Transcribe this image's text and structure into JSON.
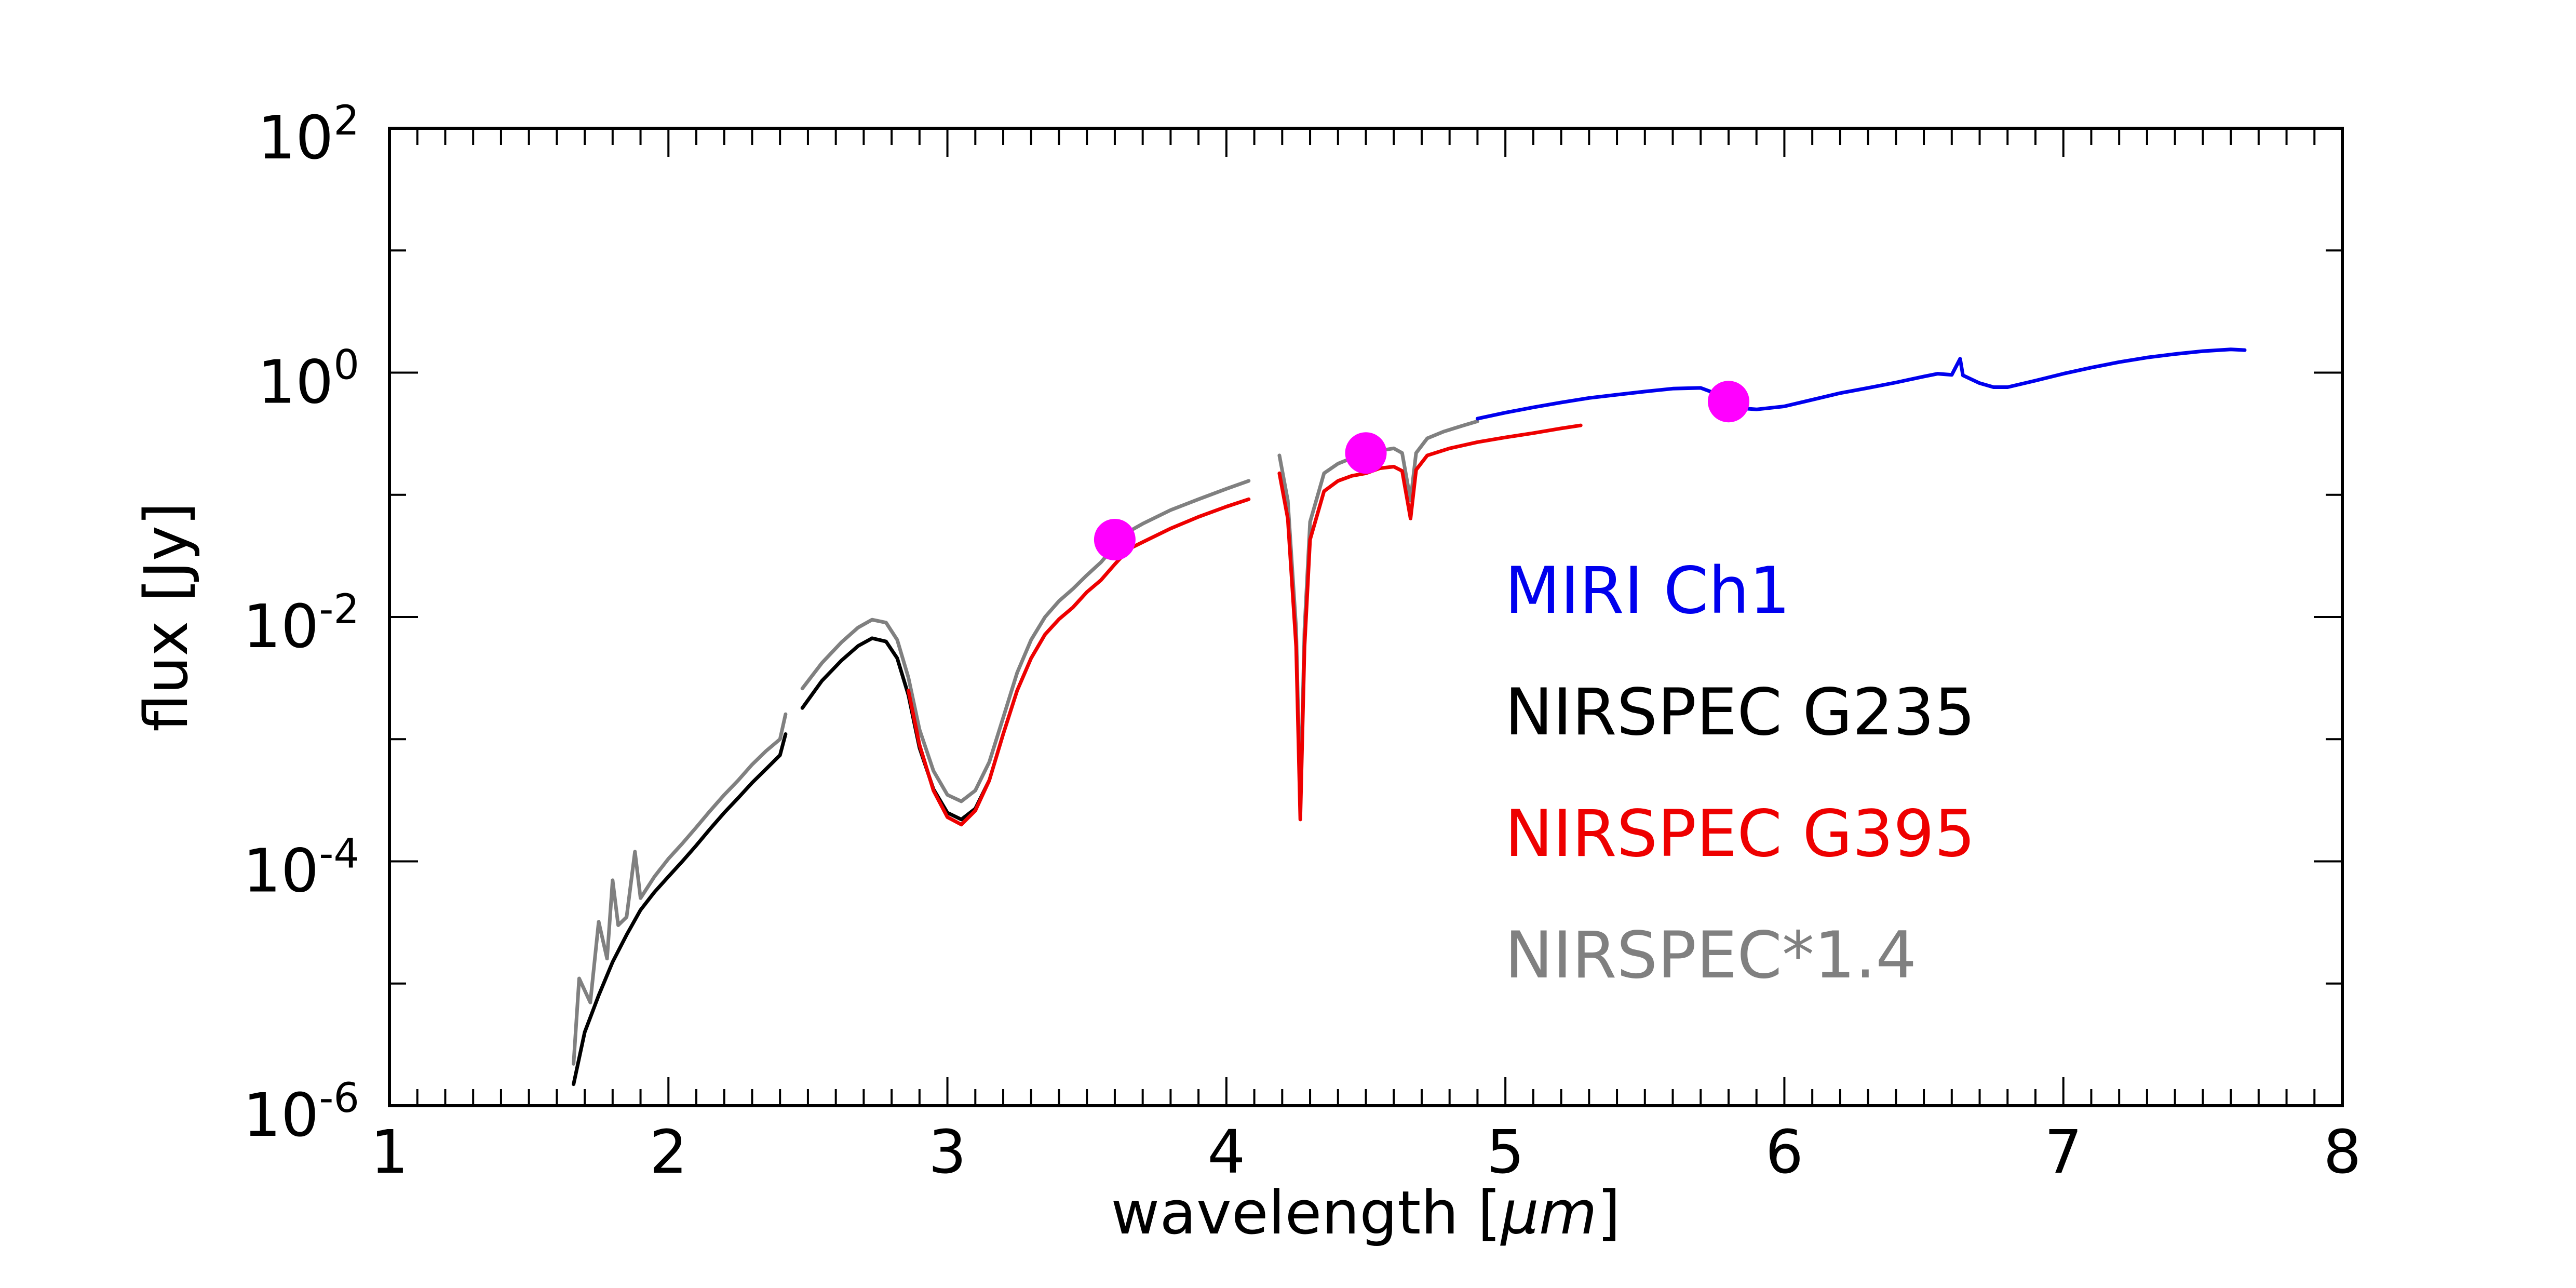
{
  "chart_data": {
    "type": "line",
    "xlabel": "wavelength [",
    "xlabel_unit": "µm",
    "xlabel_close": "]",
    "ylabel": "flux [Jy]",
    "x_scale": "linear",
    "y_scale": "log",
    "xlim": [
      1,
      8
    ],
    "ylim": [
      1e-06,
      100
    ],
    "x_ticks": [
      {
        "value": 1,
        "label": "1"
      },
      {
        "value": 2,
        "label": "2"
      },
      {
        "value": 3,
        "label": "3"
      },
      {
        "value": 4,
        "label": "4"
      },
      {
        "value": 5,
        "label": "5"
      },
      {
        "value": 6,
        "label": "6"
      },
      {
        "value": 7,
        "label": "7"
      },
      {
        "value": 8,
        "label": "8"
      }
    ],
    "y_ticks": [
      {
        "value": 1e-06,
        "base": "10",
        "exp": "-6"
      },
      {
        "value": 0.0001,
        "base": "10",
        "exp": "-4"
      },
      {
        "value": 0.01,
        "base": "10",
        "exp": "-2"
      },
      {
        "value": 1,
        "base": "10",
        "exp": "0"
      },
      {
        "value": 100,
        "base": "10",
        "exp": "2"
      }
    ],
    "legend": [
      {
        "label": "MIRI Ch1",
        "color": "#0000ee"
      },
      {
        "label": "NIRSPEC G235",
        "color": "#000000"
      },
      {
        "label": "NIRSPEC G395",
        "color": "#ee0000"
      },
      {
        "label": "NIRSPEC*1.4",
        "color": "#808080"
      }
    ],
    "series": [
      {
        "name": "NIRSPEC*1.4",
        "color": "#808080",
        "segments": [
          [
            [
              1.66,
              2.2e-06
            ],
            [
              1.68,
              1.1e-05
            ],
            [
              1.72,
              7e-06
            ],
            [
              1.75,
              3.2e-05
            ],
            [
              1.78,
              1.6e-05
            ],
            [
              1.8,
              7e-05
            ],
            [
              1.82,
              3e-05
            ],
            [
              1.85,
              3.5e-05
            ],
            [
              1.88,
              0.00012
            ],
            [
              1.9,
              5e-05
            ],
            [
              1.95,
              7.5e-05
            ],
            [
              2.0,
              0.000105
            ],
            [
              2.05,
              0.00014
            ],
            [
              2.1,
              0.00019
            ],
            [
              2.15,
              0.00026
            ],
            [
              2.2,
              0.00035
            ],
            [
              2.25,
              0.00046
            ],
            [
              2.3,
              0.00062
            ],
            [
              2.35,
              0.0008
            ],
            [
              2.4,
              0.001
            ],
            [
              2.42,
              0.0016
            ]
          ],
          [
            [
              2.48,
              0.0026
            ],
            [
              2.55,
              0.0042
            ],
            [
              2.62,
              0.0062
            ],
            [
              2.68,
              0.0082
            ],
            [
              2.73,
              0.0095
            ],
            [
              2.78,
              0.009
            ],
            [
              2.82,
              0.0065
            ],
            [
              2.86,
              0.0032
            ],
            [
              2.9,
              0.0012
            ],
            [
              2.95,
              0.00055
            ],
            [
              3.0,
              0.00035
            ],
            [
              3.05,
              0.00031
            ],
            [
              3.1,
              0.00038
            ],
            [
              3.15,
              0.00065
            ],
            [
              3.2,
              0.0015
            ],
            [
              3.25,
              0.0035
            ],
            [
              3.3,
              0.0065
            ],
            [
              3.35,
              0.01
            ],
            [
              3.4,
              0.0135
            ],
            [
              3.45,
              0.017
            ],
            [
              3.5,
              0.022
            ],
            [
              3.55,
              0.028
            ],
            [
              3.6,
              0.038
            ],
            [
              3.65,
              0.05
            ],
            [
              3.7,
              0.058
            ],
            [
              3.8,
              0.075
            ],
            [
              3.9,
              0.092
            ],
            [
              4.0,
              0.112
            ],
            [
              4.08,
              0.13
            ]
          ],
          [
            [
              4.19,
              0.21
            ],
            [
              4.22,
              0.09
            ],
            [
              4.25,
              0.008
            ],
            [
              4.265,
              0.0003
            ],
            [
              4.28,
              0.008
            ],
            [
              4.3,
              0.06
            ],
            [
              4.35,
              0.15
            ],
            [
              4.4,
              0.18
            ],
            [
              4.45,
              0.2
            ],
            [
              4.5,
              0.21
            ],
            [
              4.55,
              0.23
            ],
            [
              4.6,
              0.24
            ],
            [
              4.63,
              0.22
            ],
            [
              4.66,
              0.09
            ],
            [
              4.68,
              0.22
            ],
            [
              4.72,
              0.29
            ],
            [
              4.78,
              0.33
            ],
            [
              4.85,
              0.37
            ],
            [
              4.9,
              0.4
            ]
          ]
        ]
      },
      {
        "name": "NIRSPEC G235",
        "color": "#000000",
        "segments": [
          [
            [
              1.66,
              1.5e-06
            ],
            [
              1.7,
              4e-06
            ],
            [
              1.75,
              8e-06
            ],
            [
              1.8,
              1.5e-05
            ],
            [
              1.85,
              2.5e-05
            ],
            [
              1.9,
              4e-05
            ],
            [
              1.95,
              5.6e-05
            ],
            [
              2.0,
              7.5e-05
            ],
            [
              2.05,
              0.0001
            ],
            [
              2.1,
              0.000135
            ],
            [
              2.15,
              0.000185
            ],
            [
              2.2,
              0.00025
            ],
            [
              2.25,
              0.00033
            ],
            [
              2.3,
              0.00044
            ],
            [
              2.35,
              0.00057
            ],
            [
              2.4,
              0.00074
            ],
            [
              2.42,
              0.0011
            ]
          ],
          [
            [
              2.48,
              0.0018
            ],
            [
              2.55,
              0.003
            ],
            [
              2.62,
              0.0044
            ],
            [
              2.68,
              0.0058
            ],
            [
              2.73,
              0.0067
            ],
            [
              2.78,
              0.0063
            ],
            [
              2.82,
              0.0046
            ],
            [
              2.86,
              0.0023
            ],
            [
              2.9,
              0.00085
            ],
            [
              2.95,
              0.00039
            ],
            [
              3.0,
              0.00025
            ],
            [
              3.05,
              0.00022
            ],
            [
              3.1,
              0.00027
            ],
            [
              3.15,
              0.00046
            ]
          ]
        ]
      },
      {
        "name": "NIRSPEC G395",
        "color": "#ee0000",
        "segments": [
          [
            [
              2.86,
              0.0025
            ],
            [
              2.9,
              0.0009
            ],
            [
              2.95,
              0.00038
            ],
            [
              3.0,
              0.00023
            ],
            [
              3.05,
              0.0002
            ],
            [
              3.1,
              0.00026
            ],
            [
              3.15,
              0.00046
            ],
            [
              3.2,
              0.0011
            ],
            [
              3.25,
              0.0025
            ],
            [
              3.3,
              0.0046
            ],
            [
              3.35,
              0.0072
            ],
            [
              3.4,
              0.0096
            ],
            [
              3.45,
              0.012
            ],
            [
              3.5,
              0.016
            ],
            [
              3.55,
              0.02
            ],
            [
              3.6,
              0.027
            ],
            [
              3.65,
              0.036
            ],
            [
              3.7,
              0.041
            ],
            [
              3.8,
              0.053
            ],
            [
              3.9,
              0.066
            ],
            [
              4.0,
              0.08
            ],
            [
              4.08,
              0.092
            ]
          ],
          [
            [
              4.19,
              0.15
            ],
            [
              4.22,
              0.064
            ],
            [
              4.25,
              0.0057
            ],
            [
              4.265,
              0.00022
            ],
            [
              4.28,
              0.0057
            ],
            [
              4.3,
              0.043
            ],
            [
              4.35,
              0.107
            ],
            [
              4.4,
              0.13
            ],
            [
              4.45,
              0.143
            ],
            [
              4.5,
              0.15
            ],
            [
              4.55,
              0.165
            ],
            [
              4.6,
              0.17
            ],
            [
              4.63,
              0.157
            ],
            [
              4.66,
              0.064
            ],
            [
              4.68,
              0.16
            ],
            [
              4.72,
              0.21
            ],
            [
              4.8,
              0.24
            ],
            [
              4.9,
              0.27
            ],
            [
              5.0,
              0.295
            ],
            [
              5.1,
              0.32
            ],
            [
              5.2,
              0.35
            ],
            [
              5.27,
              0.37
            ]
          ]
        ]
      },
      {
        "name": "MIRI Ch1",
        "color": "#0000ee",
        "segments": [
          [
            [
              4.9,
              0.42
            ],
            [
              5.0,
              0.47
            ],
            [
              5.1,
              0.52
            ],
            [
              5.2,
              0.57
            ],
            [
              5.3,
              0.62
            ],
            [
              5.4,
              0.66
            ],
            [
              5.5,
              0.7
            ],
            [
              5.6,
              0.74
            ],
            [
              5.7,
              0.75
            ],
            [
              5.75,
              0.68
            ],
            [
              5.8,
              0.56
            ],
            [
              5.85,
              0.51
            ],
            [
              5.9,
              0.5
            ],
            [
              6.0,
              0.53
            ],
            [
              6.1,
              0.6
            ],
            [
              6.2,
              0.68
            ],
            [
              6.3,
              0.75
            ],
            [
              6.4,
              0.83
            ],
            [
              6.5,
              0.93
            ],
            [
              6.55,
              0.98
            ],
            [
              6.6,
              0.96
            ],
            [
              6.63,
              1.3
            ],
            [
              6.64,
              0.95
            ],
            [
              6.7,
              0.82
            ],
            [
              6.75,
              0.76
            ],
            [
              6.8,
              0.76
            ],
            [
              6.9,
              0.86
            ],
            [
              7.0,
              0.98
            ],
            [
              7.1,
              1.1
            ],
            [
              7.2,
              1.22
            ],
            [
              7.3,
              1.33
            ],
            [
              7.4,
              1.42
            ],
            [
              7.5,
              1.5
            ],
            [
              7.6,
              1.55
            ],
            [
              7.65,
              1.53
            ]
          ]
        ]
      }
    ],
    "markers": {
      "color": "#ff00ff",
      "points": [
        [
          3.6,
          0.043
        ],
        [
          4.5,
          0.22
        ],
        [
          5.8,
          0.58
        ]
      ]
    }
  }
}
